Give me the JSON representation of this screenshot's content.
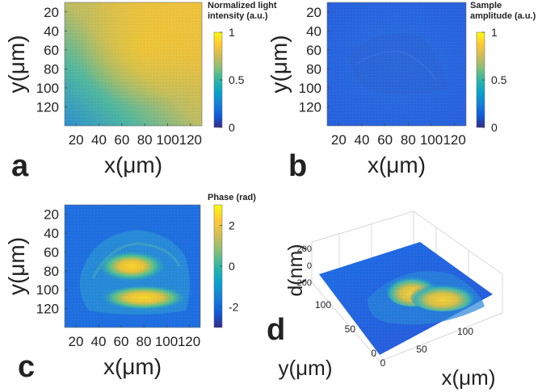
{
  "chart_data": [
    {
      "panel": "a",
      "type": "heatmap",
      "title": "Normalized light intensity (a.u.)",
      "title_lines": [
        "Normalized light",
        "intensity (a.u.)"
      ],
      "xlabel": "x(μm)",
      "ylabel": "y(μm)",
      "xticks": [
        20,
        40,
        60,
        80,
        100,
        120
      ],
      "yticks": [
        20,
        40,
        60,
        80,
        100,
        120
      ],
      "xlim": [
        10,
        130
      ],
      "ylim": [
        10,
        140
      ],
      "colorbar": {
        "min": 0,
        "max": 1,
        "ticks": [
          "1",
          "0.5",
          "0"
        ]
      }
    },
    {
      "panel": "b",
      "type": "heatmap",
      "title": "Sample amplitude (a.u.)",
      "title_lines": [
        "Sample",
        "amplitude (a.u.)"
      ],
      "xlabel": "x(μm)",
      "ylabel": "y(μm)",
      "xticks": [
        20,
        40,
        60,
        80,
        100,
        120
      ],
      "yticks": [
        20,
        40,
        60,
        80,
        100,
        120
      ],
      "xlim": [
        10,
        130
      ],
      "ylim": [
        10,
        140
      ],
      "colorbar": {
        "min": 0,
        "max": 1,
        "ticks": [
          "1",
          "0.5",
          "0"
        ]
      }
    },
    {
      "panel": "c",
      "type": "heatmap",
      "title": "Phase (rad)",
      "title_lines": [
        "Phase (rad)"
      ],
      "xlabel": "x(μm)",
      "ylabel": "y(μm)",
      "xticks": [
        20,
        40,
        60,
        80,
        100,
        120
      ],
      "yticks": [
        20,
        40,
        60,
        80,
        100,
        120
      ],
      "xlim": [
        10,
        130
      ],
      "ylim": [
        10,
        140
      ],
      "colorbar": {
        "min": -3,
        "max": 3,
        "ticks": [
          "2",
          "0",
          "-2"
        ]
      }
    },
    {
      "panel": "d",
      "type": "surface",
      "xlabel": "x(μm)",
      "ylabel": "y(μm)",
      "zlabel": "d(nm)",
      "xticks": [
        "50",
        "100"
      ],
      "yticks": [
        "0",
        "50",
        "100"
      ],
      "zticks": [
        "200",
        "0",
        "-200"
      ],
      "x_origin_label": "0",
      "zlim": [
        -200,
        200
      ]
    }
  ],
  "panel_labels": {
    "a": "a",
    "b": "b",
    "c": "c",
    "d": "d"
  },
  "colors": {
    "parula": [
      "#352a87",
      "#0f5cdd",
      "#1481d6",
      "#06a4ca",
      "#2eb7a4",
      "#87bf77",
      "#d1bb59",
      "#fec832",
      "#f9fb0e"
    ]
  }
}
